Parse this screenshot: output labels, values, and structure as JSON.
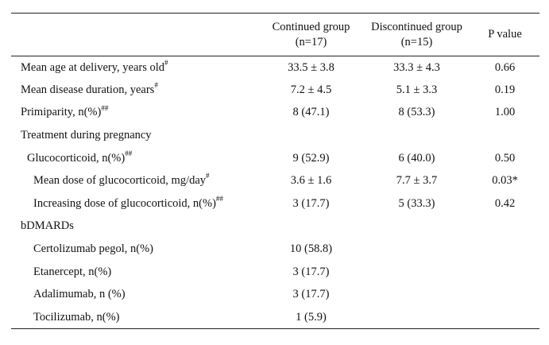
{
  "header": {
    "col1_line1": "Continued group",
    "col1_line2": "(n=17)",
    "col2_line1": "Discontinued group",
    "col2_line2": "(n=15)",
    "col3": "P value"
  },
  "rows": [
    {
      "label": "Mean age at delivery, years old",
      "sup": "#",
      "continued": "33.5 ± 3.8",
      "discontinued": "33.3 ± 4.3",
      "p": "0.66"
    },
    {
      "label": "Mean disease duration, years",
      "sup": "#",
      "continued": "7.2 ± 4.5",
      "discontinued": "5.1 ± 3.3",
      "p": "0.19"
    },
    {
      "label": "Primiparity, n(%)",
      "sup": "##",
      "continued": "8 (47.1)",
      "discontinued": "8 (53.3)",
      "p": "1.00"
    },
    {
      "label": "Treatment during pregnancy",
      "sup": "",
      "continued": "",
      "discontinued": "",
      "p": ""
    },
    {
      "label": "Glucocorticoid, n(%)",
      "sup": "##",
      "continued": "9 (52.9)",
      "discontinued": "6 (40.0)",
      "p": "0.50"
    },
    {
      "label": "Mean dose of glucocorticoid, mg/day",
      "sup": "#",
      "continued": "3.6 ± 1.6",
      "discontinued": "7.7 ± 3.7",
      "p": "0.03*"
    },
    {
      "label": "Increasing dose of glucocorticoid, n(%)",
      "sup": "##",
      "continued": "3 (17.7)",
      "discontinued": "5 (33.3)",
      "p": "0.42"
    },
    {
      "label": "bDMARDs",
      "sup": "",
      "continued": "",
      "discontinued": "",
      "p": ""
    },
    {
      "label": "Certolizumab pegol, n(%)",
      "sup": "",
      "continued": "10 (58.8)",
      "discontinued": "",
      "p": ""
    },
    {
      "label": "Etanercept, n(%)",
      "sup": "",
      "continued": "3 (17.7)",
      "discontinued": "",
      "p": ""
    },
    {
      "label": "Adalimumab, n (%)",
      "sup": "",
      "continued": "3 (17.7)",
      "discontinued": "",
      "p": ""
    },
    {
      "label": "Tocilizumab, n(%)",
      "sup": "",
      "continued": "1 (5.9)",
      "discontinued": "",
      "p": ""
    }
  ]
}
